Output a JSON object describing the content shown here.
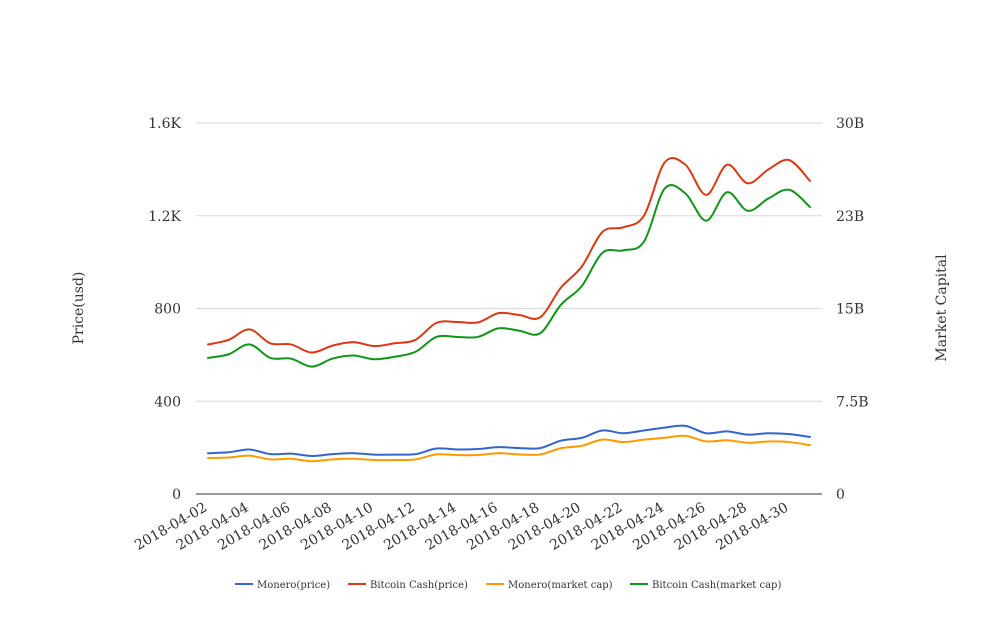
{
  "chart_data": {
    "type": "line",
    "x": [
      "2018-04-02",
      "2018-04-03",
      "2018-04-04",
      "2018-04-05",
      "2018-04-06",
      "2018-04-07",
      "2018-04-08",
      "2018-04-09",
      "2018-04-10",
      "2018-04-11",
      "2018-04-12",
      "2018-04-13",
      "2018-04-14",
      "2018-04-15",
      "2018-04-16",
      "2018-04-17",
      "2018-04-18",
      "2018-04-19",
      "2018-04-20",
      "2018-04-21",
      "2018-04-22",
      "2018-04-23",
      "2018-04-24",
      "2018-04-25",
      "2018-04-26",
      "2018-04-27",
      "2018-04-28",
      "2018-04-29",
      "2018-04-30",
      "2018-05-01"
    ],
    "x_tick_labels": [
      "2018-04-02",
      "2018-04-04",
      "2018-04-06",
      "2018-04-08",
      "2018-04-10",
      "2018-04-12",
      "2018-04-14",
      "2018-04-16",
      "2018-04-18",
      "2018-04-20",
      "2018-04-22",
      "2018-04-24",
      "2018-04-26",
      "2018-04-28",
      "2018-04-30"
    ],
    "ylabel_left": "Price(usd)",
    "ylabel_right": "Market Capital",
    "ylim_left": [
      0,
      1600
    ],
    "ylim_right": [
      0,
      30000000000
    ],
    "yticks_left": [
      "0",
      "400",
      "800",
      "1.2K",
      "1.6K"
    ],
    "yticks_right": [
      "0",
      "7.5B",
      "15B",
      "23B",
      "30B"
    ],
    "grid": true,
    "legend_position": "bottom",
    "series": [
      {
        "name": "Monero(price)",
        "axis": "left",
        "color": "#3366cc",
        "values": [
          176,
          180,
          192,
          172,
          174,
          164,
          172,
          176,
          170,
          170,
          172,
          196,
          192,
          194,
          202,
          198,
          198,
          230,
          242,
          274,
          262,
          274,
          286,
          294,
          262,
          270,
          256,
          262,
          258,
          246
        ]
      },
      {
        "name": "Bitcoin Cash(price)",
        "axis": "left",
        "color": "#dc3912",
        "values": [
          645,
          665,
          710,
          650,
          645,
          610,
          640,
          655,
          638,
          650,
          665,
          738,
          742,
          740,
          780,
          772,
          762,
          890,
          980,
          1130,
          1150,
          1200,
          1430,
          1420,
          1290,
          1420,
          1340,
          1400,
          1440,
          1350
        ]
      },
      {
        "name": "Monero(market cap)",
        "axis": "right",
        "color": "#ff9900",
        "values": [
          2900000000,
          2950000000,
          3100000000,
          2800000000,
          2850000000,
          2650000000,
          2800000000,
          2850000000,
          2750000000,
          2750000000,
          2800000000,
          3200000000,
          3150000000,
          3150000000,
          3300000000,
          3200000000,
          3200000000,
          3700000000,
          3900000000,
          4400000000,
          4200000000,
          4400000000,
          4550000000,
          4700000000,
          4250000000,
          4350000000,
          4150000000,
          4250000000,
          4200000000,
          3950000000
        ]
      },
      {
        "name": "Bitcoin Cash(market cap)",
        "axis": "right",
        "color": "#109618",
        "values": [
          11000000000,
          11300000000,
          12100000000,
          11000000000,
          10950000000,
          10300000000,
          10950000000,
          11200000000,
          10900000000,
          11100000000,
          11500000000,
          12700000000,
          12700000000,
          12700000000,
          13400000000,
          13200000000,
          13000000000,
          15300000000,
          16800000000,
          19500000000,
          19700000000,
          20400000000,
          24700000000,
          24300000000,
          22100000000,
          24400000000,
          22900000000,
          23900000000,
          24600000000,
          23200000000
        ]
      }
    ]
  }
}
